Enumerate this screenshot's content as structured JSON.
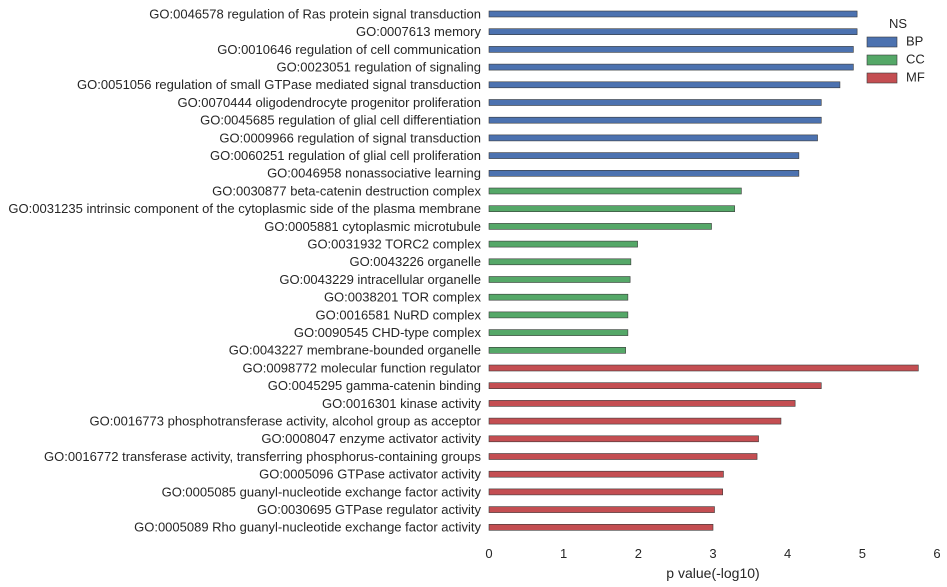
{
  "chart_data": {
    "type": "bar",
    "orientation": "horizontal",
    "xlabel": "p value(-log10)",
    "ylabel": "",
    "xlim": [
      0,
      6
    ],
    "xticks": [
      0,
      1,
      2,
      3,
      4,
      5,
      6
    ],
    "grid": false,
    "legend": {
      "title": "NS",
      "position": "top-right",
      "entries": [
        {
          "name": "BP",
          "color": "#4c72b0"
        },
        {
          "name": "CC",
          "color": "#55a868"
        },
        {
          "name": "MF",
          "color": "#c44e52"
        }
      ]
    },
    "categories": [
      "GO:0046578 regulation of Ras protein signal transduction",
      "GO:0007613 memory",
      "GO:0010646 regulation of cell communication",
      "GO:0023051 regulation of signaling",
      "GO:0051056 regulation of small GTPase mediated signal transduction",
      "GO:0070444 oligodendrocyte progenitor proliferation",
      "GO:0045685 regulation of glial cell differentiation",
      "GO:0009966 regulation of signal transduction",
      "GO:0060251 regulation of glial cell proliferation",
      "GO:0046958 nonassociative learning",
      "GO:0030877 beta-catenin destruction complex",
      "GO:0031235 intrinsic component of the cytoplasmic side of the plasma membrane",
      "GO:0005881 cytoplasmic microtubule",
      "GO:0031932 TORC2 complex",
      "GO:0043226 organelle",
      "GO:0043229 intracellular organelle",
      "GO:0038201 TOR complex",
      "GO:0016581 NuRD complex",
      "GO:0090545 CHD-type complex",
      "GO:0043227 membrane-bounded organelle",
      "GO:0098772 molecular function regulator",
      "GO:0045295 gamma-catenin binding",
      "GO:0016301 kinase activity",
      "GO:0016773 phosphotransferase activity, alcohol group as acceptor",
      "GO:0008047 enzyme activator activity",
      "GO:0016772 transferase activity, transferring phosphorus-containing groups",
      "GO:0005096 GTPase activator activity",
      "GO:0005085 guanyl-nucleotide exchange factor activity",
      "GO:0030695 GTPase regulator activity",
      "GO:0005089 Rho guanyl-nucleotide exchange factor activity"
    ],
    "values": [
      4.93,
      4.93,
      4.88,
      4.88,
      4.7,
      4.45,
      4.45,
      4.4,
      4.15,
      4.15,
      3.38,
      3.29,
      2.98,
      1.99,
      1.9,
      1.89,
      1.86,
      1.86,
      1.86,
      1.83,
      5.75,
      4.45,
      4.1,
      3.91,
      3.61,
      3.59,
      3.14,
      3.13,
      3.02,
      3.0
    ],
    "groups": [
      "BP",
      "BP",
      "BP",
      "BP",
      "BP",
      "BP",
      "BP",
      "BP",
      "BP",
      "BP",
      "CC",
      "CC",
      "CC",
      "CC",
      "CC",
      "CC",
      "CC",
      "CC",
      "CC",
      "CC",
      "MF",
      "MF",
      "MF",
      "MF",
      "MF",
      "MF",
      "MF",
      "MF",
      "MF",
      "MF"
    ]
  }
}
